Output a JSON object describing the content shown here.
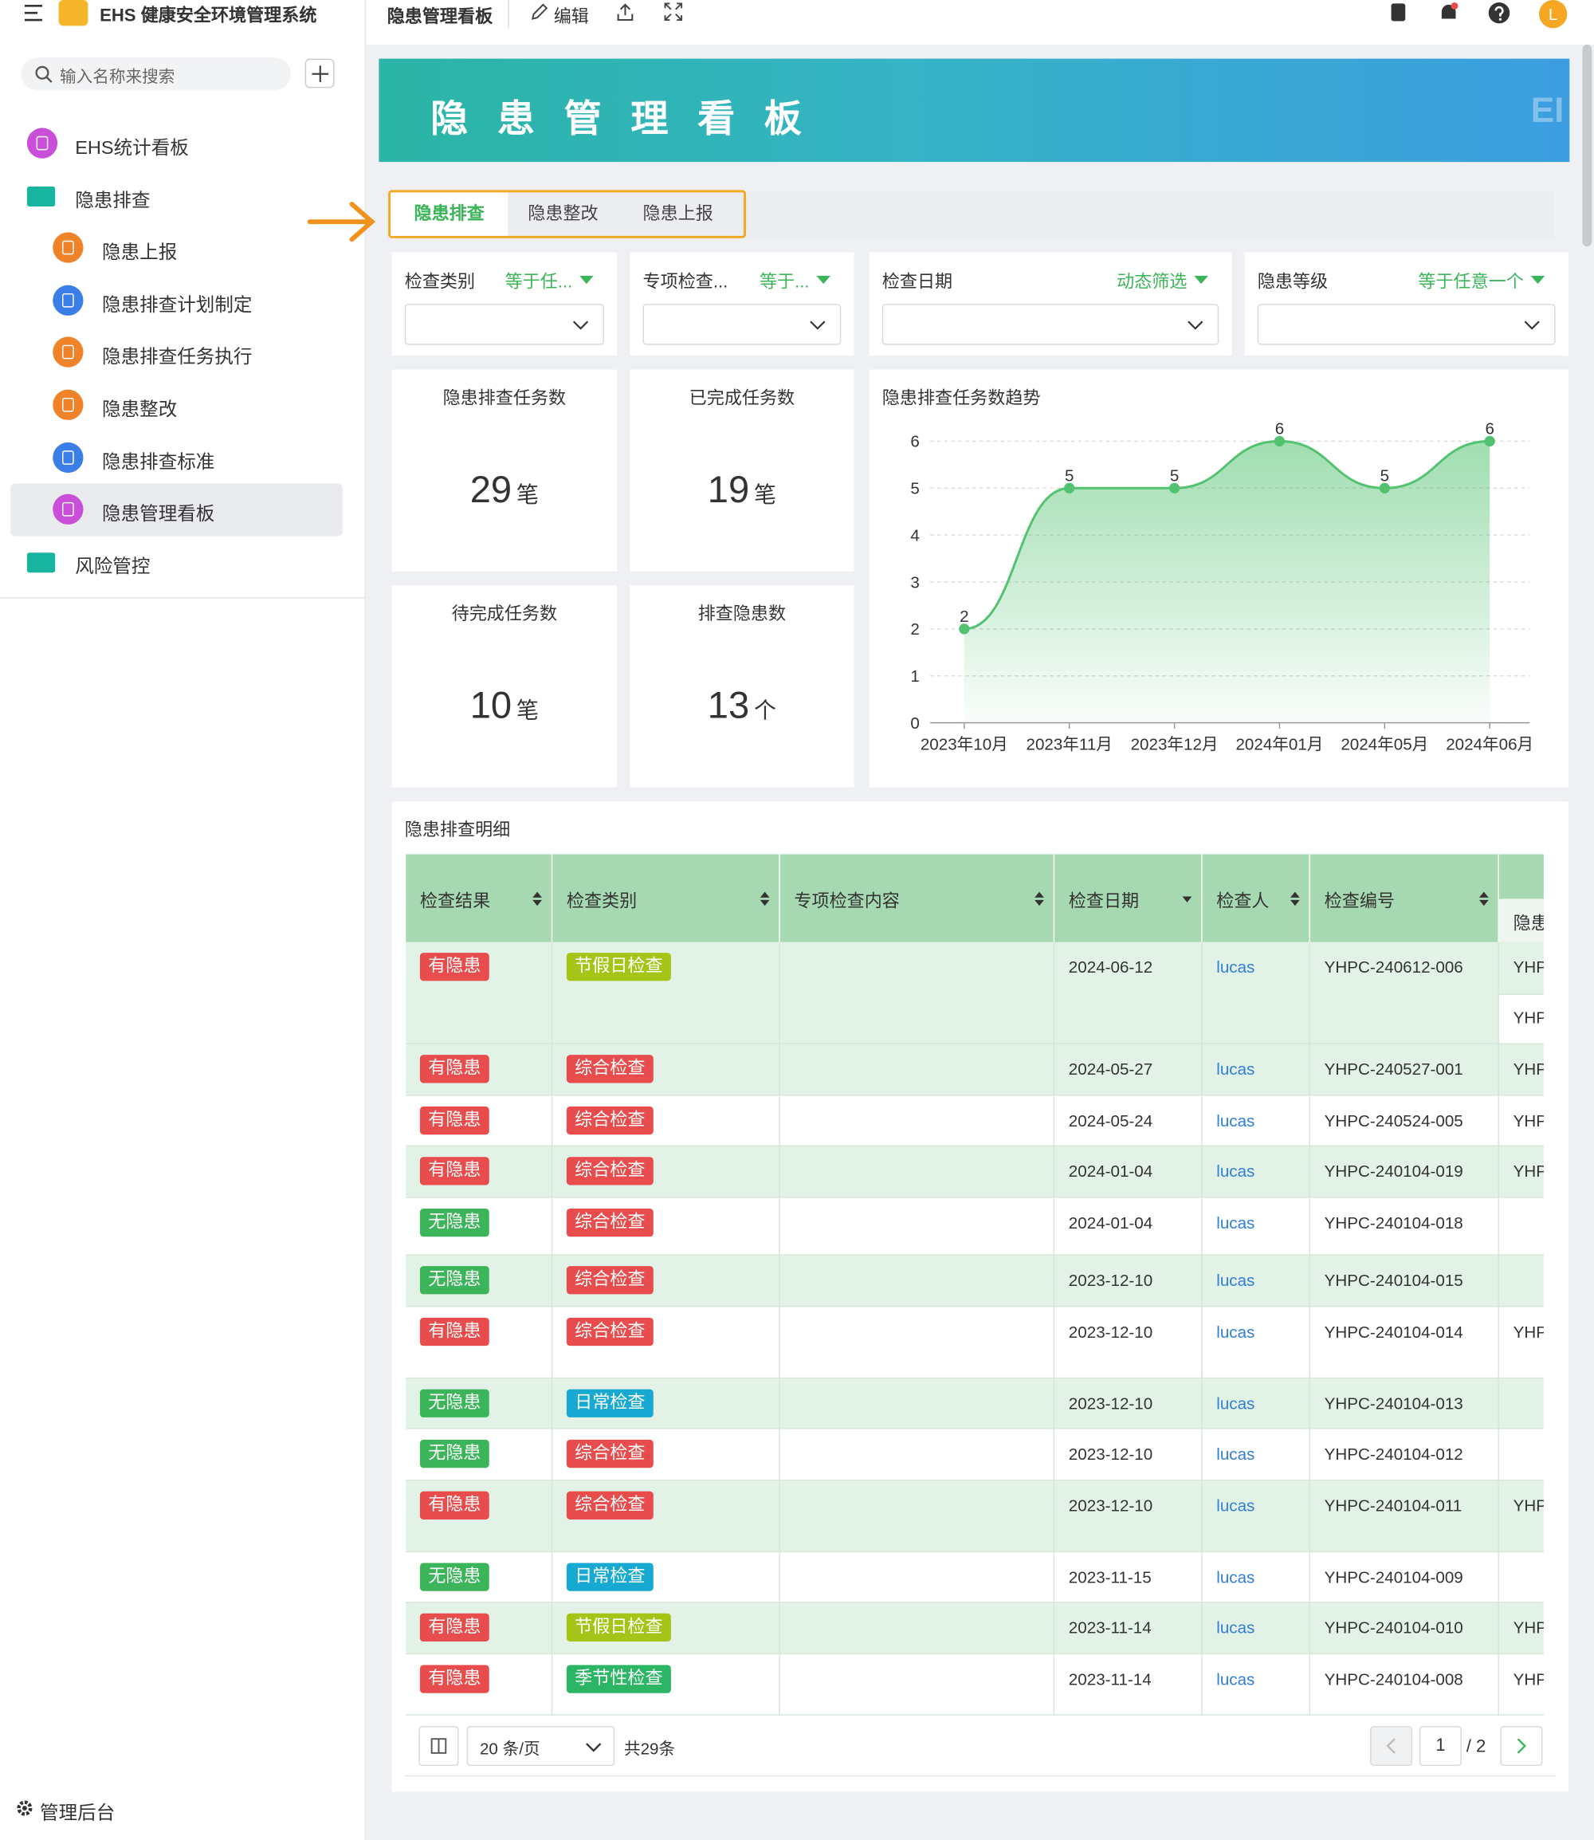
{
  "sidebar": {
    "app_title": "EHS 健康安全环境管理系统",
    "search_placeholder": "输入名称来搜索",
    "nav": [
      {
        "label": "EHS统计看板",
        "level": 1,
        "icon_color": "#c94fd8"
      },
      {
        "label": "隐患排查",
        "level": 1,
        "icon_color": "#17b5a0"
      },
      {
        "label": "隐患上报",
        "level": 2,
        "icon_color": "#f0822a"
      },
      {
        "label": "隐患排查计划制定",
        "level": 2,
        "icon_color": "#3b7ee8"
      },
      {
        "label": "隐患排查任务执行",
        "level": 2,
        "icon_color": "#f0822a"
      },
      {
        "label": "隐患整改",
        "level": 2,
        "icon_color": "#f0822a"
      },
      {
        "label": "隐患排查标准",
        "level": 2,
        "icon_color": "#3b7ee8"
      },
      {
        "label": "隐患管理看板",
        "level": 2,
        "icon_color": "#c94fd8",
        "active": true
      },
      {
        "label": "风险管控",
        "level": 1,
        "icon_color": "#17b5a0"
      }
    ],
    "admin": "管理后台"
  },
  "header": {
    "page_title": "隐患管理看板",
    "edit": "编辑",
    "user_initial": "L"
  },
  "banner": {
    "title": "隐 患 管 理 看 板",
    "right_text": "EI"
  },
  "tabs": [
    "隐患排查",
    "隐患整改",
    "隐患上报"
  ],
  "filters": [
    {
      "label": "检查类别",
      "operator": "等于任..."
    },
    {
      "label": "专项检查...",
      "operator": "等于..."
    },
    {
      "label": "检查日期",
      "operator": "动态筛选"
    },
    {
      "label": "隐患等级",
      "operator": "等于任意一个"
    }
  ],
  "kpis": [
    {
      "label": "隐患排查任务数",
      "value": 29,
      "unit": "笔"
    },
    {
      "label": "已完成任务数",
      "value": 19,
      "unit": "笔"
    },
    {
      "label": "待完成任务数",
      "value": 10,
      "unit": "笔"
    },
    {
      "label": "排查隐患数",
      "value": 13,
      "unit": "个"
    }
  ],
  "chart_data": {
    "type": "line",
    "title": "隐患排查任务数趋势",
    "categories": [
      "2023年10月",
      "2023年11月",
      "2023年12月",
      "2024年01月",
      "2024年05月",
      "2024年06月"
    ],
    "values": [
      2,
      5,
      5,
      6,
      5,
      6
    ],
    "color": "#52c271",
    "ylim": [
      0,
      6
    ],
    "yticks": [
      0,
      1,
      2,
      3,
      4,
      5,
      6
    ],
    "grid": true
  },
  "table": {
    "title": "隐患排查明细",
    "columns": [
      "检查结果",
      "检查类别",
      "专项检查内容",
      "检查日期",
      "检查人",
      "检查编号"
    ],
    "extra_column": "隐患",
    "rows": [
      {
        "result": "有隐患",
        "result_color": "#e84c4c",
        "category": "节假日检查",
        "category_color": "#a4c417",
        "date": "2024-06-12",
        "inspector": "lucas",
        "code": "YHPC-240612-006",
        "hazard": [
          "YHP",
          "YHP"
        ]
      },
      {
        "result": "有隐患",
        "result_color": "#e84c4c",
        "category": "综合检查",
        "category_color": "#e84c4c",
        "date": "2024-05-27",
        "inspector": "lucas",
        "code": "YHPC-240527-001",
        "hazard": [
          "YHP"
        ]
      },
      {
        "result": "有隐患",
        "result_color": "#e84c4c",
        "category": "综合检查",
        "category_color": "#e84c4c",
        "date": "2024-05-24",
        "inspector": "lucas",
        "code": "YHPC-240524-005",
        "hazard": [
          "YHP"
        ]
      },
      {
        "result": "有隐患",
        "result_color": "#e84c4c",
        "category": "综合检查",
        "category_color": "#e84c4c",
        "date": "2024-01-04",
        "inspector": "lucas",
        "code": "YHPC-240104-019",
        "hazard": [
          "YHP"
        ]
      },
      {
        "result": "无隐患",
        "result_color": "#3cb45a",
        "category": "综合检查",
        "category_color": "#e84c4c",
        "date": "2024-01-04",
        "inspector": "lucas",
        "code": "YHPC-240104-018",
        "hazard": []
      },
      {
        "result": "无隐患",
        "result_color": "#3cb45a",
        "category": "综合检查",
        "category_color": "#e84c4c",
        "date": "2023-12-10",
        "inspector": "lucas",
        "code": "YHPC-240104-015",
        "hazard": []
      },
      {
        "result": "有隐患",
        "result_color": "#e84c4c",
        "category": "综合检查",
        "category_color": "#e84c4c",
        "date": "2023-12-10",
        "inspector": "lucas",
        "code": "YHPC-240104-014",
        "hazard": [
          "YHP"
        ]
      },
      {
        "result": "无隐患",
        "result_color": "#3cb45a",
        "category": "日常检查",
        "category_color": "#17a9d2",
        "date": "2023-12-10",
        "inspector": "lucas",
        "code": "YHPC-240104-013",
        "hazard": []
      },
      {
        "result": "无隐患",
        "result_color": "#3cb45a",
        "category": "综合检查",
        "category_color": "#e84c4c",
        "date": "2023-12-10",
        "inspector": "lucas",
        "code": "YHPC-240104-012",
        "hazard": []
      },
      {
        "result": "有隐患",
        "result_color": "#e84c4c",
        "category": "综合检查",
        "category_color": "#e84c4c",
        "date": "2023-12-10",
        "inspector": "lucas",
        "code": "YHPC-240104-011",
        "hazard": [
          "YHP"
        ]
      },
      {
        "result": "无隐患",
        "result_color": "#3cb45a",
        "category": "日常检查",
        "category_color": "#17a9d2",
        "date": "2023-11-15",
        "inspector": "lucas",
        "code": "YHPC-240104-009",
        "hazard": []
      },
      {
        "result": "有隐患",
        "result_color": "#e84c4c",
        "category": "节假日检查",
        "category_color": "#a4c417",
        "date": "2023-11-14",
        "inspector": "lucas",
        "code": "YHPC-240104-010",
        "hazard": [
          "YHP"
        ]
      },
      {
        "result": "有隐患",
        "result_color": "#e84c4c",
        "category": "季节性检查",
        "category_color": "#2bb564",
        "date": "2023-11-14",
        "inspector": "lucas",
        "code": "YHPC-240104-008",
        "hazard": [
          "YHP"
        ]
      }
    ]
  },
  "pagination": {
    "page_size": "20 条/页",
    "total": "共29条",
    "current_page": 1,
    "total_pages": "/ 2"
  }
}
